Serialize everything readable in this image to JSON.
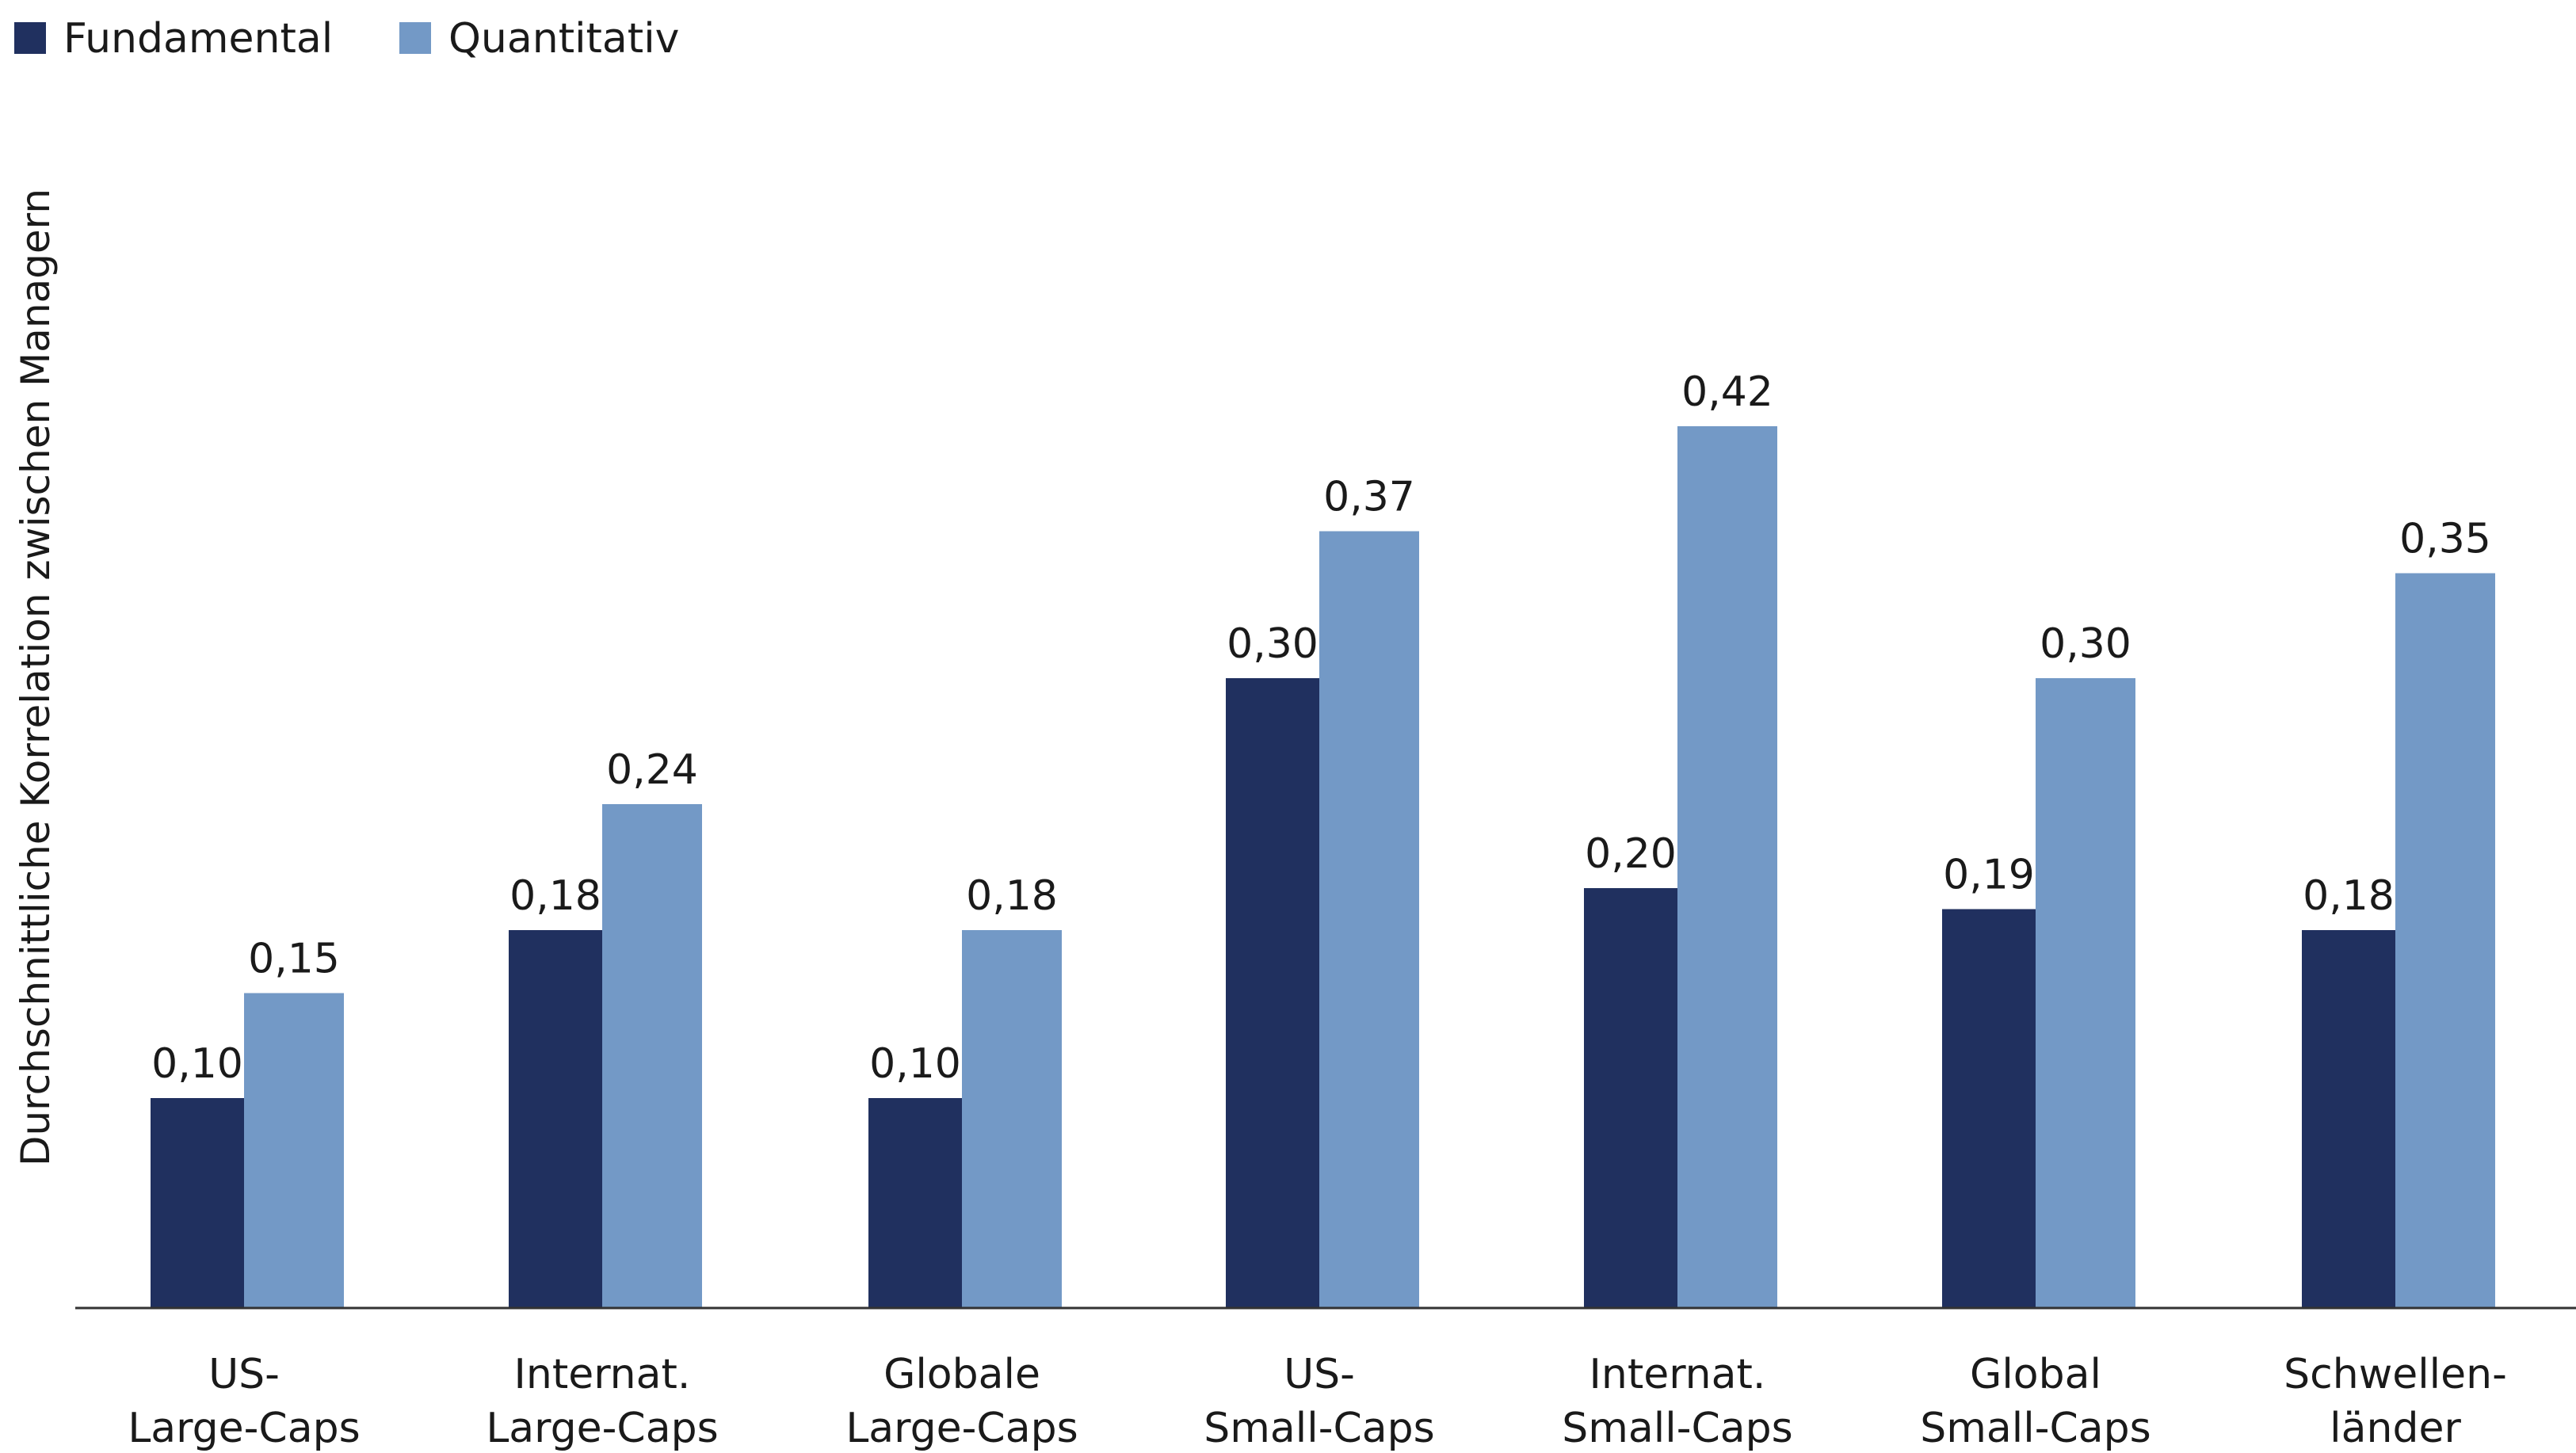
{
  "chart_data": {
    "type": "bar",
    "title": "",
    "xlabel": "",
    "ylabel": "Durchschnittliche Korrelation zwischen Managern",
    "ylim": [
      0,
      0.45
    ],
    "grid": false,
    "legend_position": "top-left",
    "categories": [
      [
        "US-",
        "Large-Caps"
      ],
      [
        "Internat.",
        "Large-Caps"
      ],
      [
        "Globale",
        "Large-Caps"
      ],
      [
        "US-",
        "Small-Caps"
      ],
      [
        "Internat.",
        "Small-Caps"
      ],
      [
        "Global",
        "Small-Caps"
      ],
      [
        "Schwellen-",
        "länder"
      ]
    ],
    "series": [
      {
        "name": "Fundamental",
        "color": "#20305f",
        "values": [
          0.1,
          0.18,
          0.1,
          0.3,
          0.2,
          0.19,
          0.18
        ],
        "labels": [
          "0,10",
          "0,18",
          "0,10",
          "0,30",
          "0,20",
          "0,19",
          "0,18"
        ]
      },
      {
        "name": "Quantitativ",
        "color": "#7399c6",
        "values": [
          0.15,
          0.24,
          0.18,
          0.37,
          0.42,
          0.3,
          0.35
        ],
        "labels": [
          "0,15",
          "0,24",
          "0,18",
          "0,37",
          "0,42",
          "0,30",
          "0,35"
        ]
      }
    ]
  }
}
